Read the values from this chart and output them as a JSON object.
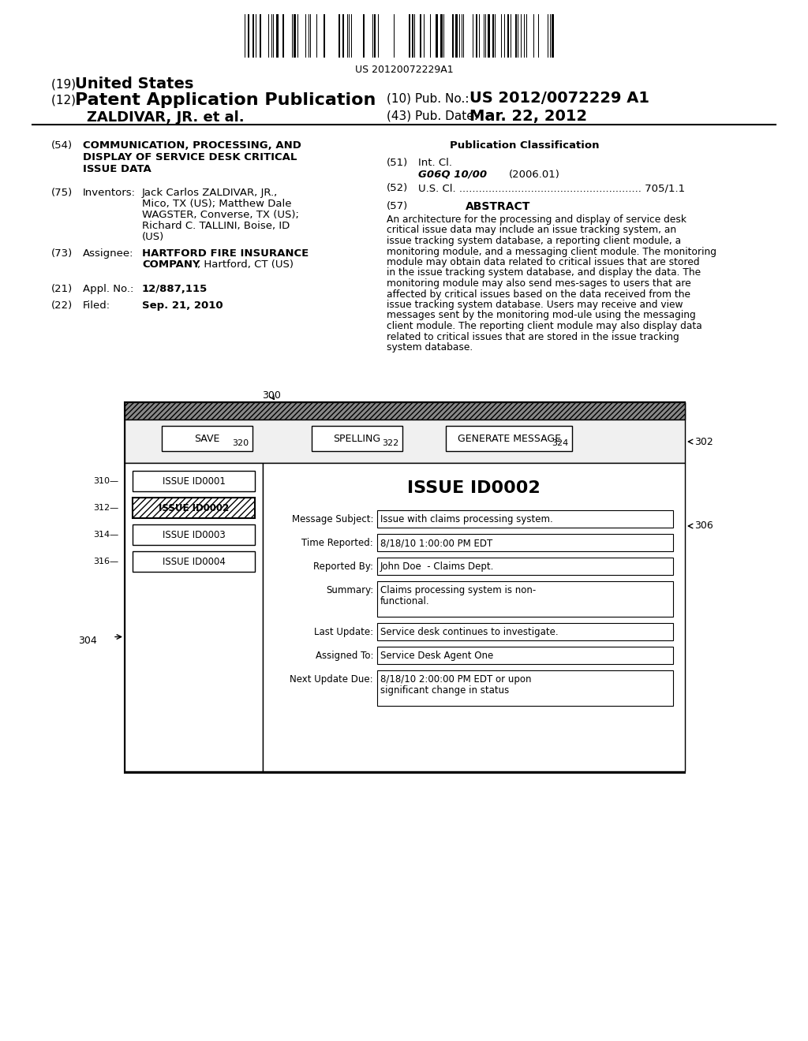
{
  "bg_color": "#ffffff",
  "barcode_text": "US 20120072229A1",
  "title_19": "(19) United States",
  "title_12": "(12) Patent Application Publication",
  "pub_no_label": "(10) Pub. No.:",
  "pub_no": "US 2012/0072229 A1",
  "inventor_name": "ZALDIVAR, JR. et al.",
  "pub_date_label": "(43) Pub. Date:",
  "pub_date": "Mar. 22, 2012",
  "field_54_label": "(54)",
  "field_54_title": "COMMUNICATION, PROCESSING, AND\nDISPLAY OF SERVICE DESK CRITICAL\nISSUE DATA",
  "pub_class_title": "Publication Classification",
  "field_51_label": "(51)",
  "field_51_text": "Int. Cl.",
  "field_51_class": "G06Q 10/00",
  "field_51_year": "(2006.01)",
  "field_52_label": "(52)",
  "field_52_text": "U.S. Cl. ........................................................ 705/1.1",
  "field_57_label": "(57)",
  "field_57_title": "ABSTRACT",
  "abstract_text": "An architecture for the processing and display of service desk critical issue data may include an issue tracking system, an issue tracking system database, a reporting client module, a monitoring module, and a messaging client module. The monitoring module may obtain data related to critical issues that are stored in the issue tracking system database, and display the data. The monitoring module may also send messages to users that are affected by critical issues based on the data received from the issue tracking system database. Users may receive and view messages sent by the monitoring module using the messaging client module. The reporting client module may also display data related to critical issues that are stored in the issue tracking system database.",
  "field_75_label": "(75)",
  "field_75_title": "Inventors:",
  "field_75_text": "Jack Carlos ZALDIVAR, JR.,\nMico, TX (US); Matthew Dale\nWAGSTER, Converse, TX (US);\nRichard C. TALLINI, Boise, ID\n(US)",
  "field_73_label": "(73)",
  "field_73_title": "Assignee:",
  "field_73_text": "HARTFORD FIRE INSURANCE\nCOMPANY, Hartford, CT (US)",
  "field_21_label": "(21)",
  "field_21_title": "Appl. No.:",
  "field_21_text": "12/887,115",
  "field_22_label": "(22)",
  "field_22_title": "Filed:",
  "field_22_text": "Sep. 21, 2010",
  "diagram_label_300": "300",
  "diagram_label_302": "302",
  "diagram_label_304": "304",
  "diagram_label_306": "306",
  "diagram_label_310": "310",
  "diagram_label_312": "312",
  "diagram_label_314": "314",
  "diagram_label_316": "316",
  "diagram_label_320": "320",
  "diagram_label_322": "322",
  "diagram_label_324": "324",
  "btn_save": "SAVE",
  "btn_spelling": "SPELLING",
  "btn_generate": "GENERATE MESSAGE",
  "issue_id_1": "ISSUE ID0001",
  "issue_id_2": "ISSUE ID0002",
  "issue_id_3": "ISSUE ID0003",
  "issue_id_4": "ISSUE ID0004",
  "main_issue": "ISSUE ID0002",
  "msg_subject_label": "Message Subject:",
  "msg_subject_val": "Issue with claims processing system.",
  "time_label": "Time Reported:",
  "time_val": "8/18/10 1:00:00 PM EDT",
  "reported_label": "Reported By:",
  "reported_val": "John Doe  - Claims Dept.",
  "summary_label": "Summary:",
  "summary_val": "Claims processing system is non-\nfunctional.",
  "last_update_label": "Last Update:",
  "last_update_val": "Service desk continues to investigate.",
  "assigned_label": "Assigned To:",
  "assigned_val": "Service Desk Agent One",
  "next_update_label": "Next Update Due:",
  "next_update_val": "8/18/10 2:00:00 PM EDT or upon\nsignificant change in status"
}
